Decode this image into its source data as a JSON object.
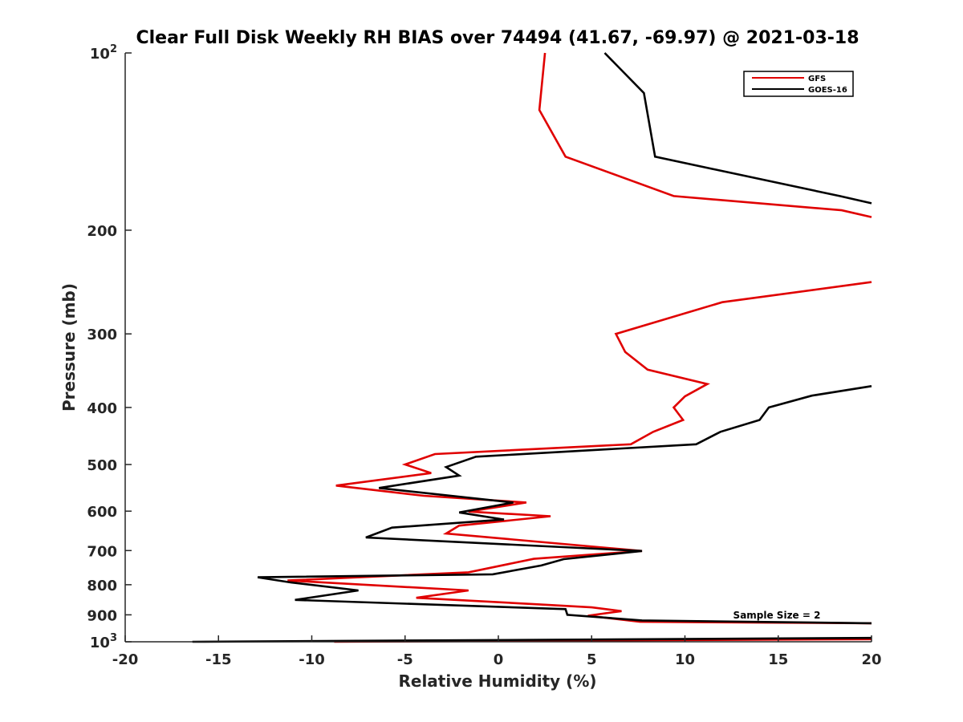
{
  "chart_data": {
    "type": "line",
    "title": "Clear Full Disk Weekly RH BIAS over 74494 (41.67, -69.97) @ 2021-03-18",
    "xlabel": "Relative Humidity (%)",
    "ylabel": "Pressure (mb)",
    "xlim": [
      -20,
      20
    ],
    "ylim": [
      100,
      1000
    ],
    "yscale": "log",
    "y_reversed": true,
    "x_ticks": [
      -20,
      -15,
      -10,
      -5,
      0,
      5,
      10,
      15,
      20
    ],
    "y_ticks": [
      {
        "value": 100,
        "base": "10",
        "exp": "2"
      },
      {
        "value": 200,
        "label": "200"
      },
      {
        "value": 300,
        "label": "300"
      },
      {
        "value": 400,
        "label": "400"
      },
      {
        "value": 500,
        "label": "500"
      },
      {
        "value": 600,
        "label": "600"
      },
      {
        "value": 700,
        "label": "700"
      },
      {
        "value": 800,
        "label": "800"
      },
      {
        "value": 900,
        "label": "900"
      },
      {
        "value": 1000,
        "base": "10",
        "exp": "3"
      }
    ],
    "legend_position": "top-right",
    "annotation": "Sample Size = 2",
    "series": [
      {
        "name": "GFS",
        "color": "#e00000",
        "segments": [
          [
            [
              2.5,
              100
            ],
            [
              2.2,
              125
            ],
            [
              3.6,
              150
            ],
            [
              9.4,
              175
            ],
            [
              18.4,
              185
            ],
            [
              20,
              190
            ]
          ],
          [
            [
              20,
              245
            ],
            [
              12,
              265
            ],
            [
              6.3,
              300
            ],
            [
              6.8,
              322
            ],
            [
              8,
              345
            ],
            [
              11.2,
              365
            ],
            [
              10,
              383
            ],
            [
              9.4,
              400
            ],
            [
              9.9,
              420
            ],
            [
              8.3,
              440
            ],
            [
              7.1,
              462
            ],
            [
              -3.4,
              480
            ],
            [
              -5,
              500
            ],
            [
              -3.6,
              517
            ],
            [
              -8.7,
              543
            ],
            [
              -4,
              565
            ],
            [
              1.5,
              580
            ],
            [
              -1.6,
              601
            ],
            [
              2.8,
              612
            ],
            [
              -2.1,
              635
            ],
            [
              -2.8,
              655
            ],
            [
              7.7,
              701
            ],
            [
              1.9,
              723
            ],
            [
              -1.6,
              762
            ],
            [
              -11.3,
              787
            ],
            [
              -1.6,
              818
            ],
            [
              -4.4,
              842
            ],
            [
              2.2,
              864
            ],
            [
              5,
              874
            ],
            [
              6.6,
              887
            ],
            [
              4.8,
              903
            ],
            [
              7.6,
              925
            ],
            [
              20,
              930
            ]
          ],
          [
            [
              20,
              990
            ],
            [
              -8.8,
              1000
            ]
          ]
        ]
      },
      {
        "name": "GOES-16",
        "color": "#000000",
        "segments": [
          [
            [
              5.7,
              100
            ],
            [
              7.8,
              117
            ],
            [
              8.4,
              150
            ],
            [
              18.3,
              175
            ],
            [
              20,
              180
            ]
          ],
          [
            [
              20,
              368
            ],
            [
              16.8,
              382
            ],
            [
              14.5,
              400
            ],
            [
              14,
              420
            ],
            [
              11.9,
              440
            ],
            [
              10.6,
              462
            ],
            [
              -1.2,
              485
            ],
            [
              -2.8,
              505
            ],
            [
              -2.1,
              522
            ],
            [
              -6.4,
              548
            ],
            [
              0.8,
              580
            ],
            [
              -2.1,
              603
            ],
            [
              0.3,
              620
            ],
            [
              -5.7,
              640
            ],
            [
              -7.1,
              665
            ],
            [
              7.7,
              701
            ],
            [
              3.5,
              724
            ],
            [
              2.3,
              742
            ],
            [
              -0.3,
              768
            ],
            [
              -12.9,
              777
            ],
            [
              -11.1,
              793
            ],
            [
              -7.5,
              818
            ],
            [
              -10.9,
              849
            ],
            [
              3.6,
              880
            ],
            [
              3.7,
              900
            ],
            [
              7.7,
              920
            ],
            [
              20,
              930
            ]
          ],
          [
            [
              20,
              985
            ],
            [
              -16.4,
              1000
            ]
          ]
        ]
      }
    ]
  }
}
